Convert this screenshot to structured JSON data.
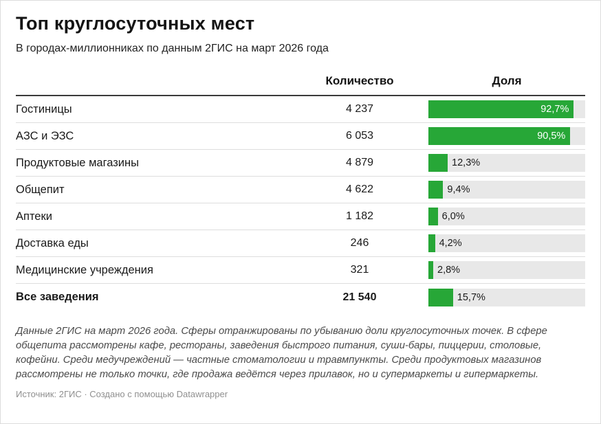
{
  "header": {
    "title": "Топ круглосуточных мест",
    "subtitle": "В городах-миллионниках по данным 2ГИС на март 2026 года"
  },
  "table": {
    "col_count": "Количество",
    "col_share": "Доля",
    "rows": [
      {
        "label": "Гостиницы",
        "count": "4 237",
        "share": 92.7,
        "share_label": "92,7%",
        "bold": false
      },
      {
        "label": "АЗС и ЭЗС",
        "count": "6 053",
        "share": 90.5,
        "share_label": "90,5%",
        "bold": false
      },
      {
        "label": "Продуктовые магазины",
        "count": "4 879",
        "share": 12.3,
        "share_label": "12,3%",
        "bold": false
      },
      {
        "label": "Общепит",
        "count": "4 622",
        "share": 9.4,
        "share_label": "9,4%",
        "bold": false
      },
      {
        "label": "Аптеки",
        "count": "1 182",
        "share": 6.0,
        "share_label": "6,0%",
        "bold": false
      },
      {
        "label": "Доставка еды",
        "count": "246",
        "share": 4.2,
        "share_label": "4,2%",
        "bold": false
      },
      {
        "label": "Медицинские учреждения",
        "count": "321",
        "share": 2.8,
        "share_label": "2,8%",
        "bold": false
      },
      {
        "label": "Все заведения",
        "count": "21 540",
        "share": 15.7,
        "share_label": "15,7%",
        "bold": true
      }
    ]
  },
  "footer": {
    "notes": "Данные 2ГИС на март 2026 года. Сферы отранжированы по убыванию доли круглосуточных точек. В сфере общепита рассмотрены кафе, рестораны, заведения быстрого питания, суши-бары, пиццерии, столовые, кофейни. Среди медучреждений — частные стоматологии и травмпункты. Среди продуктовых магазинов рассмотрены не только точки, где продажа ведётся через прилавок, но и супермаркеты и гипермаркеты.",
    "source": "Источник: 2ГИС · Создано с помощью Datawrapper"
  },
  "colors": {
    "bar_fill": "#27a737",
    "bar_track": "#e8e8e8"
  },
  "chart_data": {
    "type": "bar",
    "title": "Топ круглосуточных мест",
    "subtitle": "В городах-миллионниках по данным 2ГИС на март 2026 года",
    "categories": [
      "Гостиницы",
      "АЗС и ЭЗС",
      "Продуктовые магазины",
      "Общепит",
      "Аптеки",
      "Доставка еды",
      "Медицинские учреждения",
      "Все заведения"
    ],
    "series": [
      {
        "name": "Количество",
        "values": [
          4237,
          6053,
          4879,
          4622,
          1182,
          246,
          321,
          21540
        ]
      },
      {
        "name": "Доля",
        "values": [
          92.7,
          90.5,
          12.3,
          9.4,
          6.0,
          4.2,
          2.8,
          15.7
        ]
      }
    ],
    "xlabel": "",
    "ylabel": "",
    "xlim": [
      0,
      100
    ],
    "legend": "none",
    "grid": false,
    "orientation": "horizontal"
  }
}
